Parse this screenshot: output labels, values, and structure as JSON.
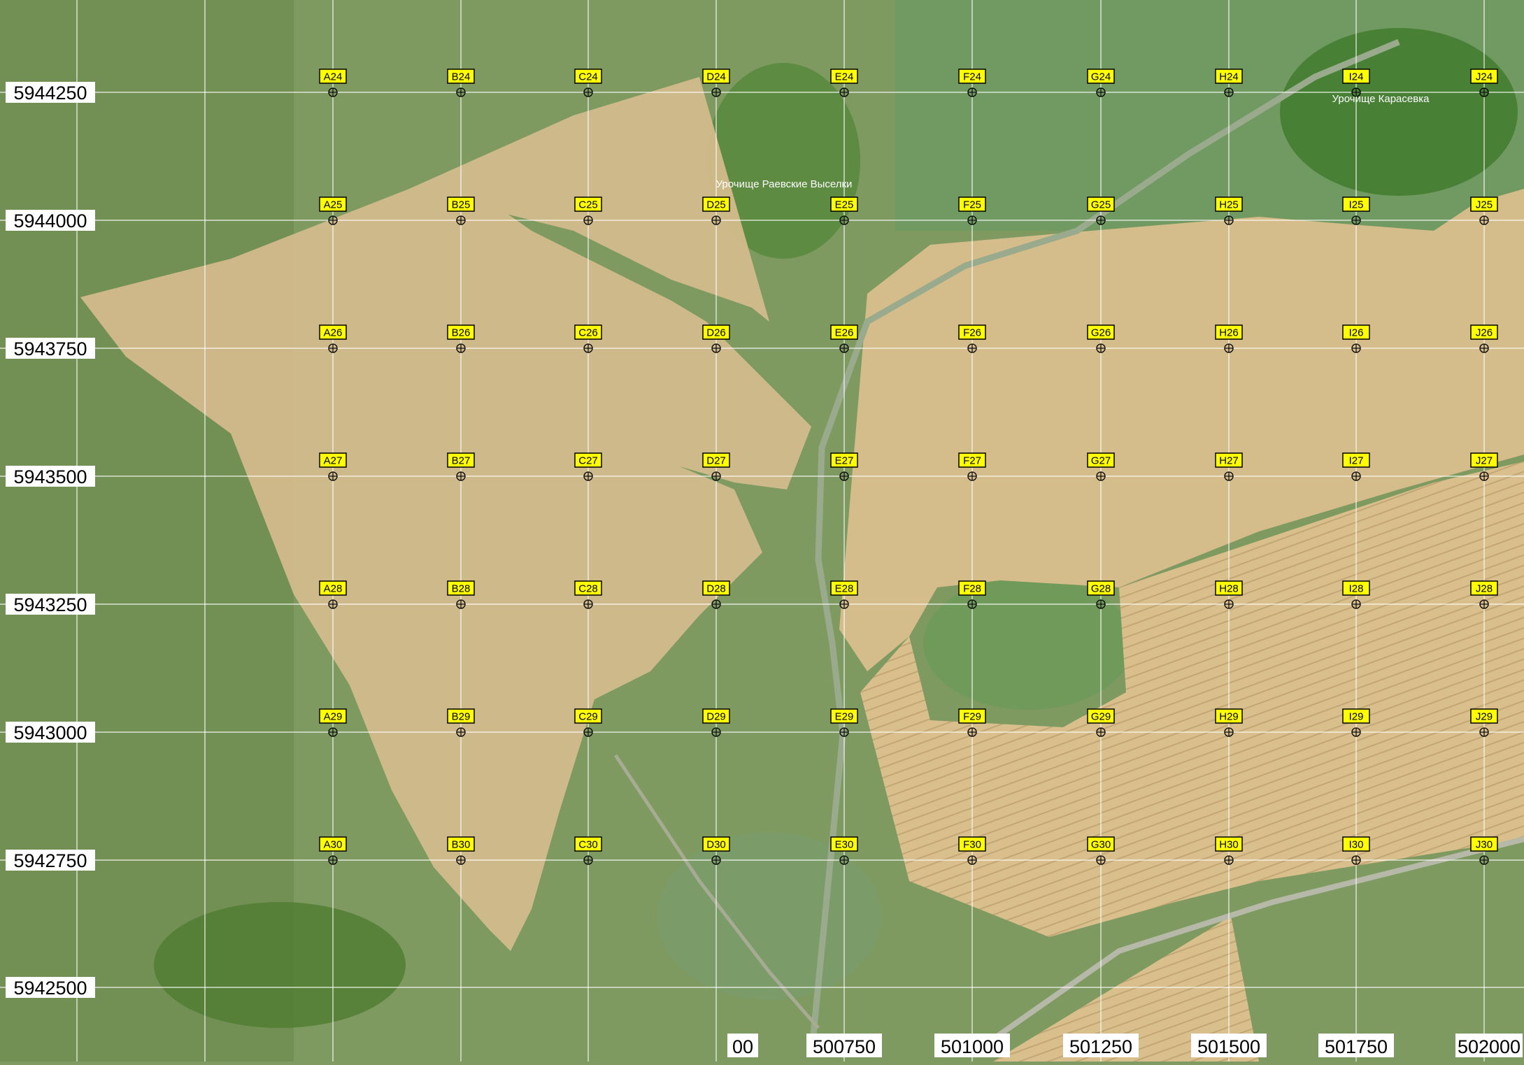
{
  "map": {
    "place_labels": [
      {
        "text": "Урочище Раевские Выселки"
      },
      {
        "text": "Урочище Карасевка"
      }
    ],
    "y_coordinate_labels": [
      "5944250",
      "5944000",
      "5943750",
      "5943500",
      "5943250",
      "5943000",
      "5942750",
      "5942500"
    ],
    "x_coordinate_labels": [
      "00",
      "500750",
      "501000",
      "501250",
      "501500",
      "501750",
      "502000"
    ],
    "grid_columns": [
      "A",
      "B",
      "C",
      "D",
      "E",
      "F",
      "G",
      "H",
      "I",
      "J"
    ],
    "grid_rows": [
      "24",
      "25",
      "26",
      "27",
      "28",
      "29",
      "30"
    ],
    "marker_fill": "#ffff00",
    "grid_color": "#ffffff",
    "field_color": "#d2b98a",
    "vegetation_color": "#7f9a62"
  }
}
